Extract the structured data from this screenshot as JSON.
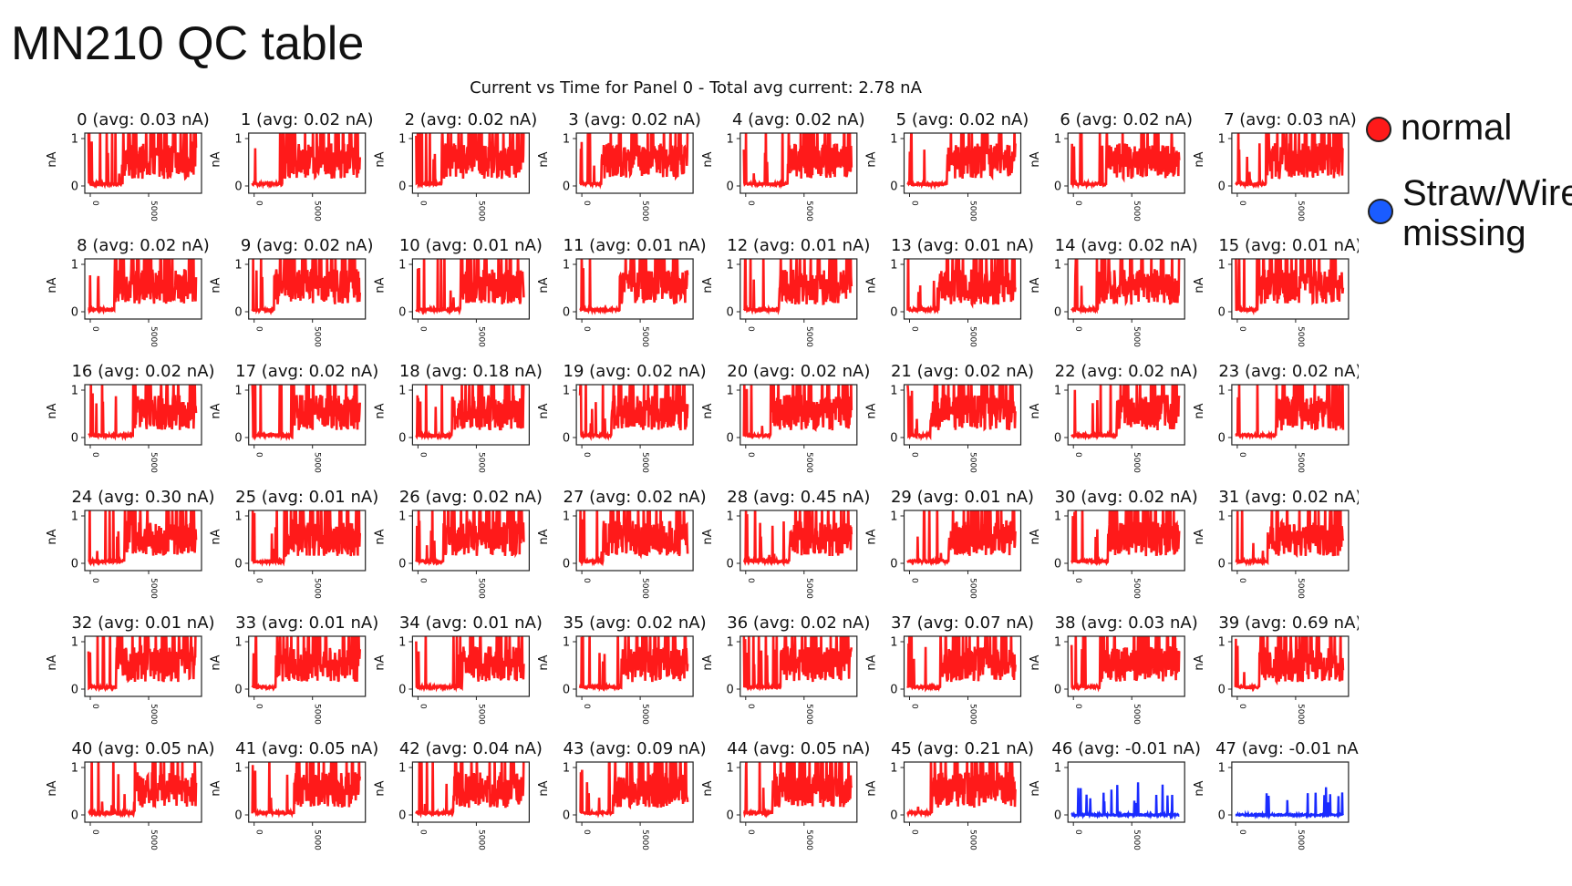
{
  "slide": {
    "title": "MN210 QC table",
    "legend": [
      {
        "label": "normal",
        "color": "#ff1a1a"
      },
      {
        "label": "Straw/Wire\nmissing",
        "color": "#1a5cff"
      }
    ]
  },
  "chart_data": {
    "type": "line",
    "title": "Current vs Time for Panel 0 - Total avg current: 2.78 nA",
    "ylabel": "nA",
    "ylim": [
      0,
      1
    ],
    "yticks": [
      "0",
      "1"
    ],
    "xticks": [
      "0",
      "5000"
    ],
    "colors": {
      "normal": "#ff1a1a",
      "missing": "#1a2bff"
    },
    "panels": [
      {
        "label": "0 (avg: 0.03 nA)",
        "status": "normal"
      },
      {
        "label": "1 (avg: 0.02 nA)",
        "status": "normal"
      },
      {
        "label": "2 (avg: 0.02 nA)",
        "status": "normal"
      },
      {
        "label": "3 (avg: 0.02 nA)",
        "status": "normal"
      },
      {
        "label": "4 (avg: 0.02 nA)",
        "status": "normal"
      },
      {
        "label": "5 (avg: 0.02 nA)",
        "status": "normal"
      },
      {
        "label": "6 (avg: 0.02 nA)",
        "status": "normal"
      },
      {
        "label": "7 (avg: 0.03 nA)",
        "status": "normal"
      },
      {
        "label": "8 (avg: 0.02 nA)",
        "status": "normal"
      },
      {
        "label": "9 (avg: 0.02 nA)",
        "status": "normal"
      },
      {
        "label": "10 (avg: 0.01 nA)",
        "status": "normal"
      },
      {
        "label": "11 (avg: 0.01 nA)",
        "status": "normal"
      },
      {
        "label": "12 (avg: 0.01 nA)",
        "status": "normal"
      },
      {
        "label": "13 (avg: 0.01 nA)",
        "status": "normal"
      },
      {
        "label": "14 (avg: 0.02 nA)",
        "status": "normal"
      },
      {
        "label": "15 (avg: 0.01 nA)",
        "status": "normal"
      },
      {
        "label": "16 (avg: 0.02 nA)",
        "status": "normal"
      },
      {
        "label": "17 (avg: 0.02 nA)",
        "status": "normal"
      },
      {
        "label": "18 (avg: 0.18 nA)",
        "status": "normal"
      },
      {
        "label": "19 (avg: 0.02 nA)",
        "status": "normal"
      },
      {
        "label": "20 (avg: 0.02 nA)",
        "status": "normal"
      },
      {
        "label": "21 (avg: 0.02 nA)",
        "status": "normal"
      },
      {
        "label": "22 (avg: 0.02 nA)",
        "status": "normal"
      },
      {
        "label": "23 (avg: 0.02 nA)",
        "status": "normal"
      },
      {
        "label": "24 (avg: 0.30 nA)",
        "status": "normal"
      },
      {
        "label": "25 (avg: 0.01 nA)",
        "status": "normal"
      },
      {
        "label": "26 (avg: 0.02 nA)",
        "status": "normal"
      },
      {
        "label": "27 (avg: 0.02 nA)",
        "status": "normal"
      },
      {
        "label": "28 (avg: 0.45 nA)",
        "status": "normal"
      },
      {
        "label": "29 (avg: 0.01 nA)",
        "status": "normal"
      },
      {
        "label": "30 (avg: 0.02 nA)",
        "status": "normal"
      },
      {
        "label": "31 (avg: 0.02 nA)",
        "status": "normal"
      },
      {
        "label": "32 (avg: 0.01 nA)",
        "status": "normal"
      },
      {
        "label": "33 (avg: 0.01 nA)",
        "status": "normal"
      },
      {
        "label": "34 (avg: 0.01 nA)",
        "status": "normal"
      },
      {
        "label": "35 (avg: 0.02 nA)",
        "status": "normal"
      },
      {
        "label": "36 (avg: 0.02 nA)",
        "status": "normal"
      },
      {
        "label": "37 (avg: 0.07 nA)",
        "status": "normal"
      },
      {
        "label": "38 (avg: 0.03 nA)",
        "status": "normal"
      },
      {
        "label": "39 (avg: 0.69 nA)",
        "status": "normal"
      },
      {
        "label": "40 (avg: 0.05 nA)",
        "status": "normal"
      },
      {
        "label": "41 (avg: 0.05 nA)",
        "status": "normal"
      },
      {
        "label": "42 (avg: 0.04 nA)",
        "status": "normal"
      },
      {
        "label": "43 (avg: 0.09 nA)",
        "status": "normal"
      },
      {
        "label": "44 (avg: 0.05 nA)",
        "status": "normal"
      },
      {
        "label": "45 (avg: 0.21 nA)",
        "status": "normal"
      },
      {
        "label": "46 (avg: -0.01 nA)",
        "status": "missing"
      },
      {
        "label": "47 (avg: -0.01 nA)",
        "status": "missing"
      }
    ]
  }
}
